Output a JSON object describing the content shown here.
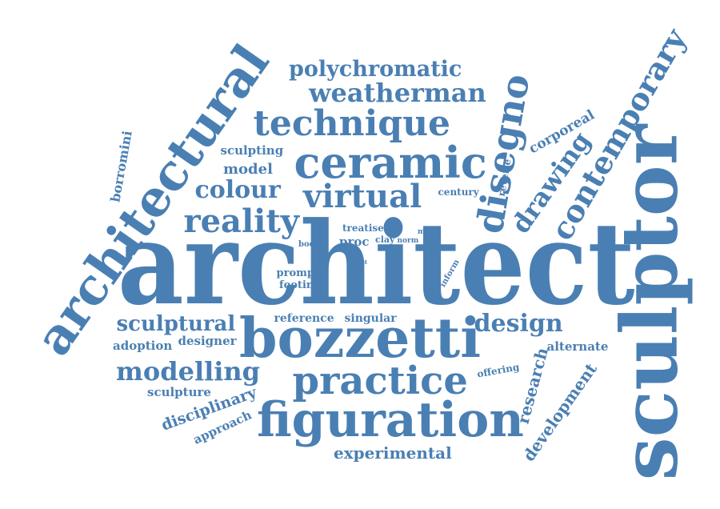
{
  "style": {
    "word_color": "#4a7fb3",
    "background": "#ffffff"
  },
  "words": [
    "architect",
    "sculptor",
    "architectural",
    "bozzetti",
    "figuration",
    "ceramic",
    "practice",
    "technique",
    "disegno",
    "contemporary",
    "virtual",
    "reality",
    "weatherman",
    "polychromatic",
    "drawing",
    "modelling",
    "design",
    "colour",
    "sculptural",
    "experimental",
    "disciplinary",
    "development",
    "research",
    "approach",
    "corporeal",
    "borromini",
    "sculpting",
    "model",
    "sculpture",
    "designer",
    "adoption",
    "alternate",
    "offering",
    "reference",
    "singular",
    "prompt",
    "footing",
    "treatise",
    "century",
    "rêverie",
    "inform",
    "proc",
    "clay",
    "norm",
    "move",
    "body",
    "lost"
  ]
}
